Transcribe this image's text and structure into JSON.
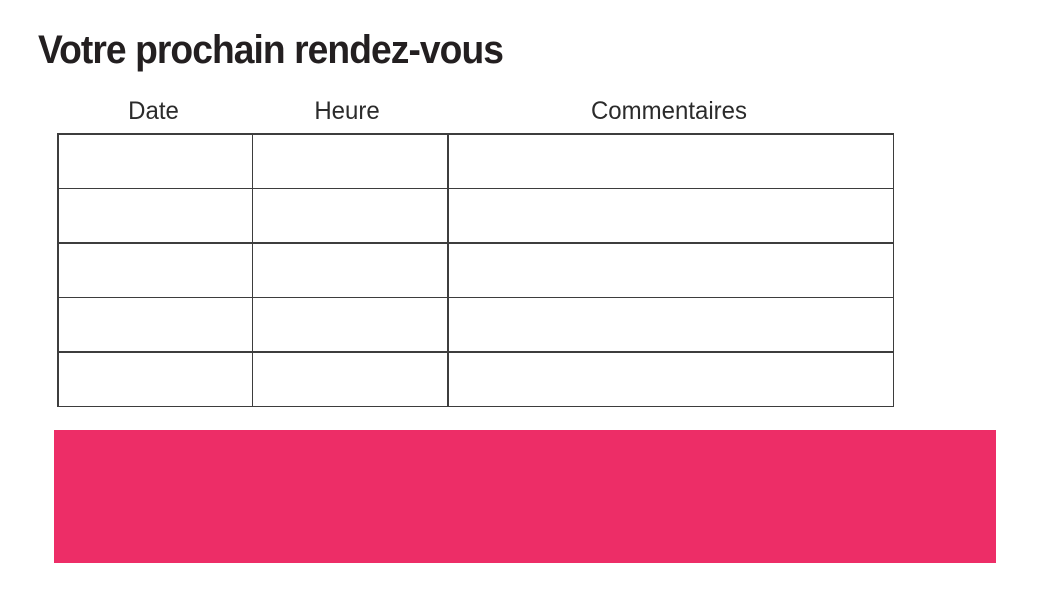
{
  "page": {
    "title": "Votre prochain rendez-vous"
  },
  "table": {
    "headers": [
      "Date",
      "Heure",
      "Commentaires"
    ],
    "row_count": 5,
    "column_count": 3,
    "cells": [
      [
        "",
        "",
        ""
      ],
      [
        "",
        "",
        ""
      ],
      [
        "",
        "",
        ""
      ],
      [
        "",
        "",
        ""
      ],
      [
        "",
        "",
        ""
      ]
    ]
  },
  "banner": {
    "text": "",
    "color": "#ED2D67"
  },
  "colors": {
    "title_text": "#231F20",
    "header_text": "#2B2B2B",
    "table_border": "#3D3D3D",
    "accent_pink": "#ED2D67",
    "background": "#FFFFFF"
  }
}
